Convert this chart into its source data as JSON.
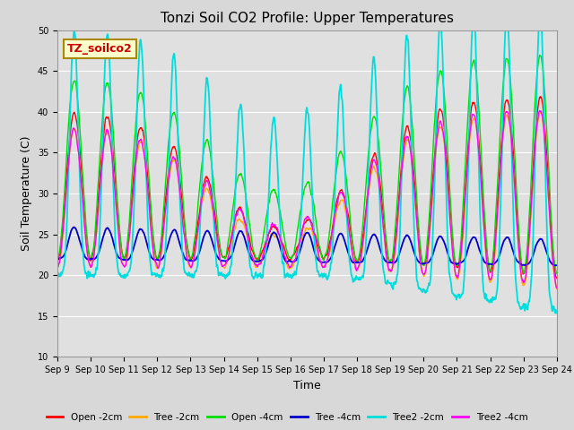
{
  "title": "Tonzi Soil CO2 Profile: Upper Temperatures",
  "xlabel": "Time",
  "ylabel": "Soil Temperature (C)",
  "ylim": [
    10,
    50
  ],
  "yticks": [
    10,
    15,
    20,
    25,
    30,
    35,
    40,
    45,
    50
  ],
  "x_labels": [
    "Sep 9",
    "Sep 10",
    "Sep 11",
    "Sep 12",
    "Sep 13",
    "Sep 14",
    "Sep 15",
    "Sep 16",
    "Sep 17",
    "Sep 18",
    "Sep 19",
    "Sep 20",
    "Sep 21",
    "Sep 22",
    "Sep 23",
    "Sep 24"
  ],
  "legend_labels": [
    "Open -2cm",
    "Tree -2cm",
    "Open -4cm",
    "Tree -4cm",
    "Tree2 -2cm",
    "Tree2 -4cm"
  ],
  "legend_colors": [
    "#ff0000",
    "#ffaa00",
    "#00dd00",
    "#0000cc",
    "#00dddd",
    "#ff00ff"
  ],
  "annotation_text": "TZ_soilco2",
  "annotation_bg": "#ffffcc",
  "annotation_border": "#aa8800",
  "fig_bg": "#d8d8d8",
  "plot_bg": "#e0e0e0"
}
